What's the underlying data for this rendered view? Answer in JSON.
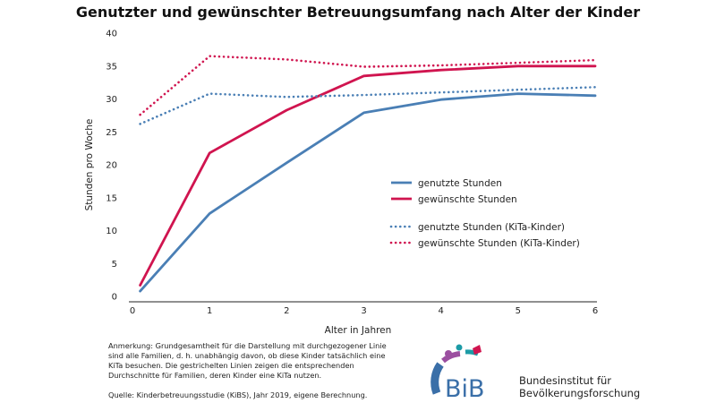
{
  "chart_data": {
    "type": "line",
    "title": "Genutzter und gewünschter Betreuungsumfang nach Alter der Kinder",
    "xlabel": "Alter in Jahren",
    "ylabel": "Stunden pro Woche",
    "xlim": [
      0,
      6
    ],
    "ylim": [
      0,
      40
    ],
    "x_ticks": [
      "0",
      "1",
      "2",
      "3",
      "4",
      "5",
      "6"
    ],
    "y_ticks": [
      "0",
      "5",
      "10",
      "15",
      "20",
      "25",
      "30",
      "35",
      "40"
    ],
    "grid": false,
    "legend_position": "right",
    "x": [
      0.1,
      1,
      2,
      3,
      4,
      5,
      6
    ],
    "series": [
      {
        "name": "genutzte Stunden",
        "style": "solid",
        "color": "#4a7fb5",
        "values": [
          0.8,
          12.6,
          20.3,
          27.9,
          29.9,
          30.8,
          30.5
        ]
      },
      {
        "name": "gewünschte Stunden",
        "style": "solid",
        "color": "#d0144f",
        "values": [
          1.7,
          21.8,
          28.3,
          33.5,
          34.4,
          35.0,
          35.0
        ]
      },
      {
        "name": "genutzte Stunden (KiTa-Kinder)",
        "style": "dotted",
        "color": "#4a7fb5",
        "values": [
          26.2,
          30.8,
          30.3,
          30.6,
          31.0,
          31.4,
          31.8
        ]
      },
      {
        "name": "gewünschte Stunden (KiTa-Kinder)",
        "style": "dotted",
        "color": "#d0144f",
        "values": [
          27.6,
          36.5,
          36.0,
          34.9,
          35.1,
          35.5,
          35.9
        ]
      }
    ]
  },
  "footer": {
    "note": "Anmerkung: Grundgesamtheit für die Darstellung mit durchgezogener Linie sind alle Familien, d. h. unabhängig davon, ob diese Kinder tatsächlich eine KiTa besuchen. Die gestrichelten Linien zeigen die entsprechenden Durchschnitte für Familien, deren Kinder eine KiTa nutzen.",
    "source": "Quelle: Kinderbetreuungsstudie (KiBS), Jahr 2019, eigene Berechnung."
  },
  "logo": {
    "abbr": "BiB",
    "name_line1": "Bundesinstitut für",
    "name_line2": "Bevölkerungsforschung",
    "colors": [
      "#d0144f",
      "#1c9ba6",
      "#9b4fa0",
      "#3a6fa8"
    ]
  }
}
